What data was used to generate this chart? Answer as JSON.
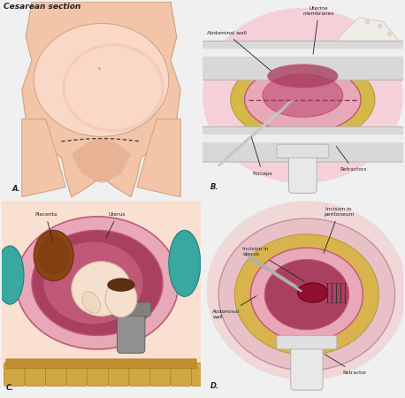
{
  "title": "Cesarean section",
  "bg_color": "#f0f0f0",
  "panel_bg": "#ffffff",
  "skin_color": "#f2c4a8",
  "skin_shadow": "#e0a888",
  "skin_light": "#fad8c8",
  "pink_dark": "#c05878",
  "pink_mid": "#d07090",
  "pink_light": "#e8a8b8",
  "uterus_color": "#aa4060",
  "retractor_color": "#d8d8d8",
  "teal_color": "#50c0c0",
  "bone_color": "#d8b860",
  "text_color": "#222222",
  "label_color": "#222222",
  "panel_labels": [
    "A.",
    "B.",
    "C.",
    "D."
  ],
  "skin_edge": "#d0a080",
  "fat_color": "#d8c858",
  "glove_skin": "#f0e8e0",
  "gray_tool": "#c0c0c0"
}
